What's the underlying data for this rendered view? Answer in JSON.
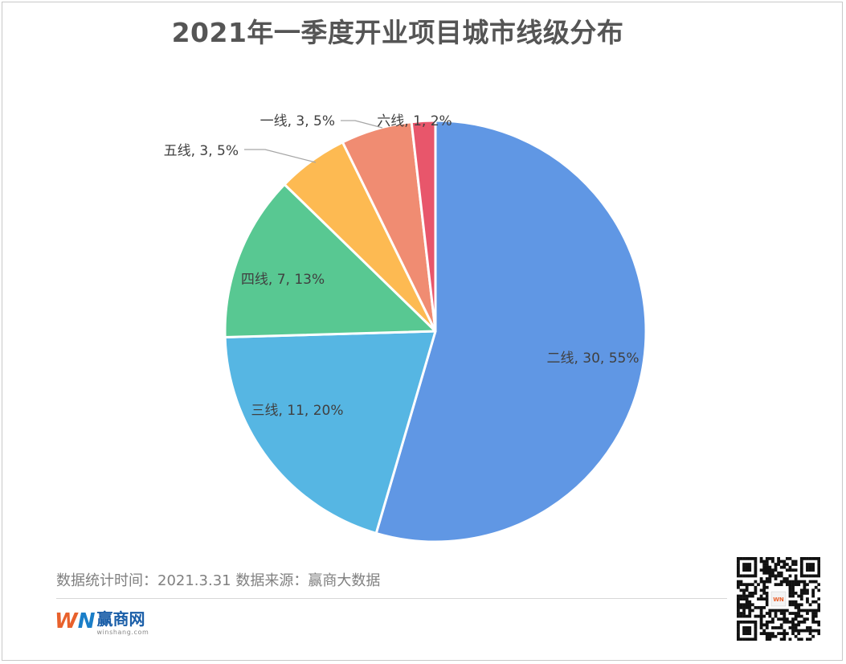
{
  "chart_data": {
    "type": "pie",
    "title": "2021年一季度开业项目城市线级分布",
    "start_angle_deg": 0,
    "direction": "clockwise",
    "slices": [
      {
        "label": "二线",
        "value": 30,
        "percent": "55%",
        "color": "#6097E4"
      },
      {
        "label": "三线",
        "value": 11,
        "percent": "20%",
        "color": "#56B6E3"
      },
      {
        "label": "四线",
        "value": 7,
        "percent": "13%",
        "color": "#58C892"
      },
      {
        "label": "五线",
        "value": 3,
        "percent": "5%",
        "color": "#FDBA52"
      },
      {
        "label": "一线",
        "value": 3,
        "percent": "5%",
        "color": "#F08C72"
      },
      {
        "label": "六线",
        "value": 1,
        "percent": "2%",
        "color": "#E8566B"
      }
    ],
    "label_format": "{label}, {value}, {percent}"
  },
  "footer": {
    "note": "数据统计时间：2021.3.31  数据来源：赢商大数据"
  },
  "logo": {
    "mark_w": "W",
    "mark_n": "N",
    "name": "赢商网",
    "domain": "winshang.com"
  },
  "colors": {
    "title": "#555555",
    "label_text": "#404040",
    "footer_text": "#808080",
    "leader_line": "#a6a6a6"
  },
  "icons": {
    "qr": "qr-code-icon"
  }
}
